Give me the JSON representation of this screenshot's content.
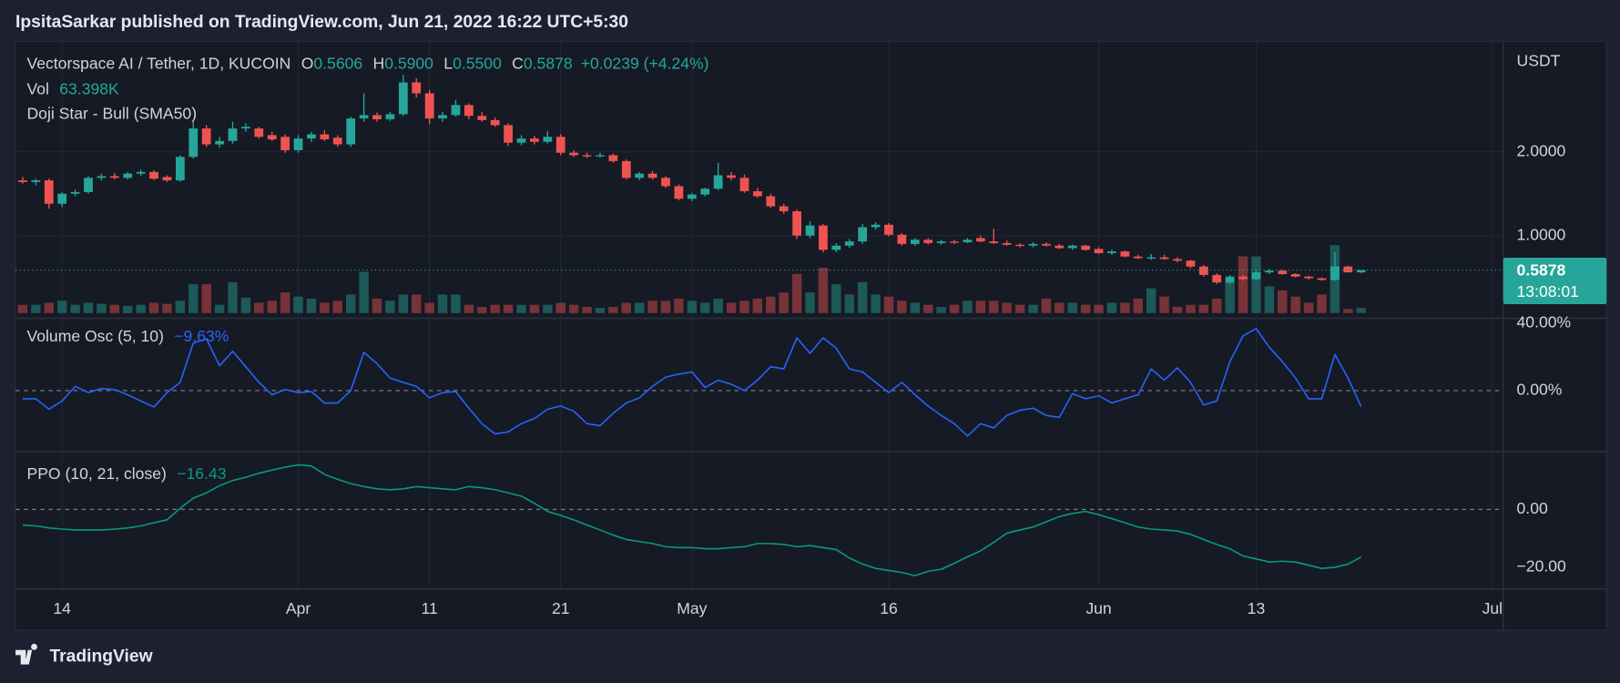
{
  "header": {
    "title": "IpsitaSarkar published on TradingView.com, Jun 21, 2022 16:22 UTC+5:30"
  },
  "chart_data": [
    {
      "type": "candlestick",
      "symbol": "Vectorspace AI / Tether, 1D, KUCOIN",
      "ohlc_labels": [
        "O",
        "H",
        "L",
        "C"
      ],
      "ohlc_values": [
        "0.5606",
        "0.5900",
        "0.5500",
        "0.5878"
      ],
      "change": "+0.0239 (+4.24%)",
      "volume_name": "Vol",
      "volume_label": "63.398K",
      "pattern": "Doji Star - Bull (SMA50)",
      "currency": "USDT",
      "countdown": "13:08:01",
      "up_color": "#26a69a",
      "down_color": "#ef5350",
      "grid": true,
      "xlim": [
        -0.55,
        112.83
      ],
      "xticks": [
        {
          "value": 3,
          "label": "14"
        },
        {
          "value": 21,
          "label": "Apr"
        },
        {
          "value": 31,
          "label": "11"
        },
        {
          "value": 41,
          "label": "21"
        },
        {
          "value": 51,
          "label": "May"
        },
        {
          "value": 66,
          "label": "16"
        },
        {
          "value": 82,
          "label": "Jun"
        },
        {
          "value": 94,
          "label": "13"
        },
        {
          "value": 112,
          "label": "Jul"
        }
      ],
      "ylim": [
        0.074,
        3.321
      ],
      "yticks": [
        {
          "value": 1,
          "label": "1.0000"
        },
        {
          "value": 2,
          "label": "2.0000"
        }
      ],
      "vlim": [
        0,
        3350
      ],
      "candles": [
        [
          1.66,
          1.7,
          1.62,
          1.64
        ],
        [
          1.64,
          1.68,
          1.6,
          1.66
        ],
        [
          1.66,
          1.68,
          1.32,
          1.38
        ],
        [
          1.38,
          1.52,
          1.34,
          1.5
        ],
        [
          1.5,
          1.55,
          1.47,
          1.52
        ],
        [
          1.52,
          1.71,
          1.5,
          1.69
        ],
        [
          1.69,
          1.74,
          1.66,
          1.71
        ],
        [
          1.71,
          1.75,
          1.67,
          1.69
        ],
        [
          1.69,
          1.76,
          1.67,
          1.74
        ],
        [
          1.74,
          1.79,
          1.71,
          1.76
        ],
        [
          1.76,
          1.78,
          1.66,
          1.68
        ],
        [
          1.7,
          1.72,
          1.64,
          1.66
        ],
        [
          1.66,
          1.96,
          1.64,
          1.94
        ],
        [
          1.94,
          2.36,
          1.92,
          2.28
        ],
        [
          2.28,
          2.32,
          2.06,
          2.09
        ],
        [
          2.09,
          2.18,
          2.05,
          2.13
        ],
        [
          2.13,
          2.36,
          2.1,
          2.28
        ],
        [
          2.28,
          2.34,
          2.24,
          2.3
        ],
        [
          2.28,
          2.3,
          2.16,
          2.18
        ],
        [
          2.2,
          2.24,
          2.13,
          2.15
        ],
        [
          2.18,
          2.21,
          1.99,
          2.02
        ],
        [
          2.02,
          2.2,
          1.99,
          2.16
        ],
        [
          2.16,
          2.24,
          2.12,
          2.21
        ],
        [
          2.21,
          2.26,
          2.13,
          2.15
        ],
        [
          2.17,
          2.2,
          2.06,
          2.09
        ],
        [
          2.09,
          2.42,
          2.06,
          2.4
        ],
        [
          2.4,
          2.7,
          2.36,
          2.44
        ],
        [
          2.44,
          2.47,
          2.36,
          2.39
        ],
        [
          2.39,
          2.48,
          2.37,
          2.45
        ],
        [
          2.45,
          2.92,
          2.43,
          2.83
        ],
        [
          2.83,
          2.88,
          2.65,
          2.7
        ],
        [
          2.7,
          2.74,
          2.33,
          2.4
        ],
        [
          2.4,
          2.48,
          2.36,
          2.44
        ],
        [
          2.44,
          2.62,
          2.42,
          2.56
        ],
        [
          2.56,
          2.58,
          2.39,
          2.43
        ],
        [
          2.43,
          2.48,
          2.36,
          2.38
        ],
        [
          2.38,
          2.41,
          2.3,
          2.32
        ],
        [
          2.32,
          2.34,
          2.07,
          2.11
        ],
        [
          2.11,
          2.2,
          2.08,
          2.16
        ],
        [
          2.16,
          2.19,
          2.09,
          2.12
        ],
        [
          2.12,
          2.25,
          2.1,
          2.18
        ],
        [
          2.18,
          2.21,
          1.96,
          1.99
        ],
        [
          1.99,
          2.02,
          1.94,
          1.96
        ],
        [
          1.96,
          1.99,
          1.93,
          1.95
        ],
        [
          1.95,
          1.99,
          1.93,
          1.96
        ],
        [
          1.96,
          1.98,
          1.87,
          1.89
        ],
        [
          1.89,
          1.91,
          1.67,
          1.69
        ],
        [
          1.69,
          1.76,
          1.66,
          1.74
        ],
        [
          1.74,
          1.77,
          1.67,
          1.69
        ],
        [
          1.69,
          1.71,
          1.57,
          1.59
        ],
        [
          1.59,
          1.61,
          1.42,
          1.44
        ],
        [
          1.44,
          1.51,
          1.41,
          1.49
        ],
        [
          1.49,
          1.57,
          1.47,
          1.56
        ],
        [
          1.56,
          1.87,
          1.54,
          1.72
        ],
        [
          1.72,
          1.76,
          1.66,
          1.69
        ],
        [
          1.69,
          1.73,
          1.51,
          1.53
        ],
        [
          1.53,
          1.57,
          1.45,
          1.47
        ],
        [
          1.47,
          1.5,
          1.33,
          1.35
        ],
        [
          1.35,
          1.38,
          1.26,
          1.29
        ],
        [
          1.29,
          1.31,
          0.96,
          1.0
        ],
        [
          1.0,
          1.17,
          0.97,
          1.12
        ],
        [
          1.12,
          1.14,
          0.8,
          0.83
        ],
        [
          0.83,
          0.91,
          0.8,
          0.88
        ],
        [
          0.88,
          0.96,
          0.85,
          0.93
        ],
        [
          0.93,
          1.14,
          0.9,
          1.1
        ],
        [
          1.1,
          1.16,
          1.07,
          1.13
        ],
        [
          1.13,
          1.15,
          0.99,
          1.01
        ],
        [
          1.01,
          1.03,
          0.88,
          0.9
        ],
        [
          0.9,
          0.97,
          0.88,
          0.95
        ],
        [
          0.95,
          0.97,
          0.89,
          0.91
        ],
        [
          0.91,
          0.95,
          0.89,
          0.93
        ],
        [
          0.93,
          0.95,
          0.9,
          0.92
        ],
        [
          0.92,
          0.97,
          0.91,
          0.95
        ],
        [
          0.97,
          1.0,
          0.92,
          0.93
        ],
        [
          0.93,
          1.08,
          0.9,
          0.91
        ],
        [
          0.91,
          0.94,
          0.88,
          0.89
        ],
        [
          0.89,
          0.91,
          0.86,
          0.88
        ],
        [
          0.88,
          0.92,
          0.86,
          0.9
        ],
        [
          0.9,
          0.92,
          0.87,
          0.88
        ],
        [
          0.88,
          0.9,
          0.84,
          0.85
        ],
        [
          0.85,
          0.89,
          0.83,
          0.88
        ],
        [
          0.88,
          0.89,
          0.82,
          0.83
        ],
        [
          0.84,
          0.86,
          0.78,
          0.79
        ],
        [
          0.79,
          0.83,
          0.77,
          0.81
        ],
        [
          0.81,
          0.82,
          0.74,
          0.75
        ],
        [
          0.75,
          0.77,
          0.72,
          0.73
        ],
        [
          0.73,
          0.78,
          0.71,
          0.74
        ],
        [
          0.74,
          0.77,
          0.71,
          0.72
        ],
        [
          0.72,
          0.74,
          0.68,
          0.7
        ],
        [
          0.7,
          0.71,
          0.61,
          0.63
        ],
        [
          0.63,
          0.65,
          0.51,
          0.53
        ],
        [
          0.53,
          0.55,
          0.42,
          0.44
        ],
        [
          0.44,
          0.53,
          0.42,
          0.51
        ],
        [
          0.51,
          0.53,
          0.46,
          0.48
        ],
        [
          0.48,
          0.58,
          0.46,
          0.56
        ],
        [
          0.56,
          0.6,
          0.54,
          0.58
        ],
        [
          0.58,
          0.59,
          0.53,
          0.54
        ],
        [
          0.54,
          0.55,
          0.5,
          0.51
        ],
        [
          0.51,
          0.52,
          0.47,
          0.49
        ],
        [
          0.49,
          0.5,
          0.46,
          0.47
        ],
        [
          0.47,
          0.8,
          0.46,
          0.63
        ],
        [
          0.63,
          0.64,
          0.56,
          0.5606
        ],
        [
          0.5606,
          0.59,
          0.55,
          0.5878
        ]
      ],
      "volume": [
        102,
        102,
        127,
        152,
        102,
        127,
        114,
        102,
        89,
        102,
        127,
        114,
        152,
        356,
        356,
        102,
        381,
        191,
        127,
        152,
        254,
        203,
        178,
        127,
        152,
        229,
        508,
        178,
        152,
        229,
        229,
        127,
        229,
        229,
        102,
        76,
        102,
        102,
        102,
        102,
        102,
        127,
        102,
        76,
        64,
        76,
        127,
        127,
        152,
        152,
        178,
        152,
        127,
        178,
        127,
        152,
        178,
        203,
        254,
        483,
        254,
        559,
        356,
        229,
        381,
        229,
        203,
        152,
        127,
        102,
        76,
        102,
        152,
        152,
        152,
        127,
        102,
        102,
        178,
        127,
        127,
        102,
        102,
        127,
        127,
        178,
        305,
        203,
        76,
        102,
        102,
        178,
        381,
        699,
        699,
        330,
        279,
        203,
        127,
        229,
        838,
        51,
        63.398
      ]
    },
    {
      "type": "line",
      "name": "Volume Osc (5, 10)",
      "value_label": "−9.63%",
      "color": "#2962ff",
      "hline": 0,
      "ylim": [
        -35.7,
        40.6
      ],
      "yticks": [
        {
          "value": 0,
          "label": "0.00%"
        },
        {
          "value": 40,
          "label": "40.00%"
        }
      ],
      "values": [
        -4.9,
        -4.9,
        -11.1,
        -6.2,
        2.5,
        -1.2,
        1.2,
        0.6,
        -2.5,
        -6.2,
        -9.8,
        -1.2,
        4.9,
        28.3,
        30.8,
        14.8,
        23.4,
        14.2,
        4.9,
        -2.5,
        0.6,
        -1.2,
        -0.6,
        -7.4,
        -7.4,
        0,
        22.8,
        16,
        7.4,
        4.9,
        2.5,
        -4.3,
        -1.2,
        -0.6,
        -10.5,
        -19.7,
        -25.8,
        -24.6,
        -19.7,
        -16.6,
        -11.1,
        -9.2,
        -12.3,
        -19.7,
        -20.9,
        -13.5,
        -7.4,
        -4.3,
        2.5,
        8,
        9.8,
        11.1,
        1.8,
        6.2,
        3.7,
        0,
        6.2,
        14.2,
        12.9,
        31.4,
        22.2,
        31.4,
        25.2,
        12.9,
        11.1,
        4.9,
        -1.2,
        4.9,
        -2.5,
        -9.2,
        -14.8,
        -19.7,
        -27.1,
        -19.7,
        -22.2,
        -14.8,
        -11.7,
        -10.5,
        -14.8,
        -16,
        -1.8,
        -4.9,
        -3.1,
        -7.4,
        -4.9,
        -2.5,
        12.9,
        6.2,
        13.5,
        4.9,
        -8.6,
        -6.2,
        17.2,
        32.6,
        36.9,
        25.8,
        17.2,
        7.4,
        -4.9,
        -4.9,
        21.5,
        7.4,
        -9.63
      ]
    },
    {
      "type": "line",
      "name": "PPO (10, 21, close)",
      "value_label": "−16.43",
      "color": "#089981",
      "hline": 0,
      "ylim": [
        -27.5,
        20
      ],
      "yticks": [
        {
          "value": 0,
          "label": "0.00"
        },
        {
          "value": -20,
          "label": "−20.00"
        }
      ],
      "values": [
        -5.4,
        -5.7,
        -6.4,
        -6.8,
        -7.1,
        -7.1,
        -7.1,
        -6.8,
        -6.4,
        -5.7,
        -4.6,
        -3.6,
        0.4,
        3.9,
        5.7,
        8.2,
        10,
        11.1,
        12.5,
        13.6,
        14.6,
        15.4,
        15,
        12.1,
        10.4,
        8.9,
        7.9,
        7.1,
        6.8,
        7.1,
        7.9,
        7.5,
        7.1,
        6.8,
        7.9,
        7.5,
        6.8,
        5.7,
        4.6,
        2.1,
        -0.7,
        -2.1,
        -3.6,
        -5.4,
        -7.1,
        -8.9,
        -10.4,
        -11.1,
        -11.8,
        -12.9,
        -13.2,
        -13.2,
        -13.6,
        -13.6,
        -13.2,
        -12.9,
        -11.8,
        -11.8,
        -12.1,
        -12.9,
        -12.5,
        -13.2,
        -13.9,
        -16.8,
        -18.9,
        -20.4,
        -21.1,
        -21.8,
        -22.9,
        -21.4,
        -20.7,
        -18.6,
        -16.4,
        -14.3,
        -11.4,
        -8.2,
        -7.1,
        -6.1,
        -4.3,
        -2.5,
        -1.4,
        -0.7,
        -1.8,
        -3.2,
        -4.6,
        -6.1,
        -6.8,
        -7.1,
        -7.5,
        -8.6,
        -10.4,
        -12.1,
        -13.6,
        -16.1,
        -17.1,
        -18.2,
        -17.9,
        -18.2,
        -19.3,
        -20.4,
        -20,
        -18.9,
        -16.43
      ]
    }
  ],
  "footer": {
    "brand": "TradingView"
  }
}
